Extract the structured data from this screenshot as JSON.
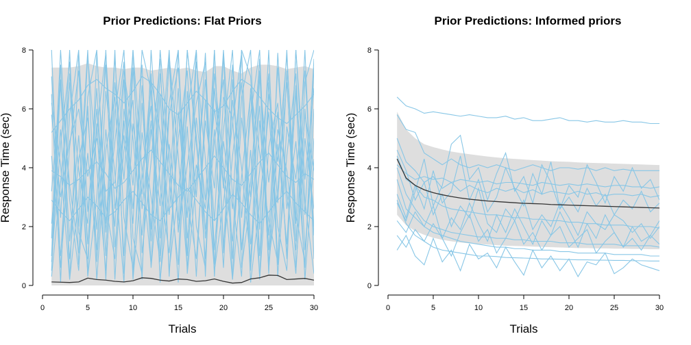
{
  "chart_data": [
    {
      "type": "line",
      "title": "Prior Predictions: Flat Priors",
      "xlabel": "Trials",
      "ylabel": "Response Time (sec)",
      "xlim": [
        0,
        30
      ],
      "ylim": [
        0,
        8
      ],
      "x_ticks": [
        0,
        5,
        10,
        15,
        20,
        25,
        30
      ],
      "y_ticks": [
        0,
        2,
        4,
        6,
        8
      ],
      "grid": false,
      "legend": "none",
      "band_color": "#dedede",
      "sample_color": "#87c6e6",
      "mean_color": "#333333",
      "x": [
        1,
        2,
        3,
        4,
        5,
        6,
        7,
        8,
        9,
        10,
        11,
        12,
        13,
        14,
        15,
        16,
        17,
        18,
        19,
        20,
        21,
        22,
        23,
        24,
        25,
        26,
        27,
        28,
        29,
        30
      ],
      "band": {
        "lower": [
          0,
          0,
          0,
          0,
          0,
          0,
          0,
          0,
          0,
          0,
          0,
          0,
          0,
          0,
          0,
          0,
          0,
          0,
          0,
          0,
          0,
          0,
          0,
          0,
          0,
          0,
          0,
          0,
          0,
          0
        ],
        "upper": [
          7.4,
          7.4,
          7.4,
          7.45,
          7.55,
          7.45,
          7.4,
          7.4,
          7.35,
          7.4,
          7.4,
          7.3,
          7.35,
          7.4,
          7.35,
          7.4,
          7.3,
          7.25,
          7.45,
          7.45,
          7.3,
          7.2,
          7.4,
          7.5,
          7.5,
          7.45,
          7.35,
          7.4,
          7.45,
          7.35
        ]
      },
      "mean": [
        0.12,
        0.11,
        0.1,
        0.12,
        0.25,
        0.2,
        0.18,
        0.14,
        0.12,
        0.16,
        0.26,
        0.24,
        0.18,
        0.15,
        0.22,
        0.2,
        0.14,
        0.16,
        0.22,
        0.14,
        0.08,
        0.1,
        0.22,
        0.26,
        0.35,
        0.34,
        0.2,
        0.22,
        0.24,
        0.18
      ],
      "samples": [
        [
          6.2,
          4.1,
          0.2,
          7.9,
          2.5,
          6.0,
          1.8,
          8.0,
          0.4,
          5.5,
          3.1,
          7.2,
          0.1,
          4.8,
          2.2,
          8.0,
          5.1,
          0.9,
          6.7,
          3.3,
          7.5,
          1.2,
          4.6,
          0.3,
          6.9,
          2.8,
          8.0,
          1.5,
          5.8,
          3.9
        ],
        [
          0.5,
          7.0,
          3.4,
          1.1,
          6.4,
          8.0,
          2.1,
          4.9,
          7.6,
          0.2,
          3.8,
          6.1,
          1.6,
          7.8,
          4.4,
          0.6,
          5.7,
          2.9,
          8.0,
          1.3,
          6.3,
          4.0,
          0.8,
          7.1,
          3.5,
          5.9,
          1.0,
          6.8,
          2.4,
          7.7
        ],
        [
          5.2,
          5.6,
          6.0,
          6.3,
          6.8,
          7.0,
          6.7,
          6.5,
          6.2,
          6.6,
          7.1,
          6.9,
          6.5,
          6.0,
          5.8,
          6.2,
          6.6,
          6.3,
          5.9,
          6.1,
          6.6,
          7.0,
          6.8,
          6.4,
          6.0,
          5.7,
          5.5,
          5.8,
          6.1,
          6.5
        ],
        [
          3.9,
          3.7,
          3.4,
          3.6,
          3.9,
          4.2,
          3.8,
          3.3,
          3.5,
          3.9,
          4.3,
          4.6,
          4.2,
          3.8,
          3.4,
          3.2,
          3.6,
          4.0,
          4.4,
          4.0,
          3.6,
          3.4,
          3.8,
          4.2,
          4.5,
          4.1,
          3.7,
          3.5,
          3.8,
          3.6
        ],
        [
          2.9,
          2.5,
          2.2,
          2.6,
          3.0,
          2.7,
          2.3,
          2.5,
          2.9,
          3.2,
          2.8,
          2.4,
          2.2,
          2.6,
          3.0,
          3.3,
          2.9,
          2.5,
          2.2,
          2.6,
          3.1,
          2.8,
          2.4,
          2.1,
          2.5,
          2.9,
          3.2,
          2.8,
          2.5,
          2.2
        ],
        [
          1.0,
          7.5,
          0.2,
          3.0,
          8.0,
          0.8,
          5.3,
          2.0,
          7.0,
          0.3,
          6.2,
          1.9,
          8.0,
          4.4,
          0.1,
          6.6,
          3.0,
          7.9,
          0.7,
          4.9,
          2.6,
          8.0,
          0.5,
          5.6,
          1.7,
          7.4,
          3.2,
          0.4,
          6.0,
          2.0
        ],
        [
          8.0,
          0.6,
          4.7,
          7.3,
          1.4,
          5.5,
          0.2,
          6.9,
          3.6,
          8.0,
          1.1,
          4.2,
          7.7,
          0.3,
          5.9,
          2.3,
          8.0,
          1.6,
          4.9,
          7.0,
          0.2,
          3.7,
          6.5,
          1.9,
          8.0,
          0.7,
          4.4,
          7.2,
          1.2,
          5.0
        ],
        [
          3.2,
          6.8,
          1.5,
          5.1,
          0.4,
          7.9,
          2.7,
          0.9,
          6.0,
          3.4,
          7.5,
          0.6,
          4.1,
          8.0,
          1.8,
          5.4,
          0.3,
          6.3,
          2.2,
          7.8,
          0.9,
          5.7,
          3.0,
          7.3,
          0.5,
          4.8,
          1.4,
          6.6,
          0.2,
          4.3
        ],
        [
          7.1,
          2.3,
          8.0,
          0.7,
          4.5,
          1.2,
          6.6,
          3.8,
          0.1,
          7.4,
          2.6,
          5.6,
          1.0,
          6.2,
          8.0,
          0.4,
          3.6,
          7.0,
          1.2,
          5.3,
          8.0,
          0.6,
          2.9,
          6.1,
          0.8,
          3.3,
          6.9,
          2.1,
          8.0,
          0.9
        ],
        [
          0.3,
          3.5,
          6.9,
          2.0,
          7.8,
          4.0,
          0.5,
          5.9,
          8.0,
          1.6,
          0.4,
          7.0,
          5.2,
          2.4,
          6.7,
          1.0,
          7.6,
          4.3,
          0.5,
          2.8,
          5.5,
          7.9,
          1.4,
          3.9,
          7.2,
          0.3,
          5.4,
          3.6,
          7.3,
          1.7
        ],
        [
          4.4,
          1.0,
          5.8,
          8.0,
          0.3,
          3.0,
          7.5,
          1.3,
          4.6,
          6.3,
          0.2,
          8.0,
          3.4,
          1.1,
          5.0,
          7.3,
          2.0,
          0.6,
          7.2,
          4.0,
          1.5,
          6.4,
          8.0,
          0.2,
          4.7,
          6.2,
          0.9,
          8.0,
          3.6,
          6.7
        ],
        [
          2.1,
          5.3,
          0.9,
          4.3,
          5.7,
          1.9,
          8.0,
          0.2,
          5.6,
          2.6,
          6.8,
          1.5,
          7.2,
          3.6,
          0.7,
          8.0,
          4.8,
          1.9,
          5.3,
          0.6,
          7.0,
          2.3,
          5.8,
          8.0,
          0.4,
          7.9,
          2.6,
          4.9,
          0.6,
          7.4
        ],
        [
          6.5,
          0.1,
          7.2,
          3.9,
          2.1,
          6.7,
          1.0,
          7.8,
          2.3,
          0.6,
          5.2,
          3.0,
          0.8,
          5.8,
          7.4,
          2.9,
          0.9,
          5.6,
          3.3,
          8.0,
          3.0,
          0.3,
          6.7,
          4.5,
          2.2,
          0.8,
          7.3,
          0.6,
          5.0,
          2.6
        ],
        [
          1.6,
          8.0,
          2.9,
          0.5,
          6.1,
          0.2,
          4.6,
          6.4,
          1.0,
          8.0,
          3.9,
          0.7,
          6.5,
          0.5,
          3.2,
          5.9,
          8.0,
          0.3,
          8.0,
          1.1,
          4.4,
          6.9,
          0.1,
          2.8,
          5.9,
          2.0,
          0.5,
          8.0,
          2.9,
          0.4
        ],
        [
          5.8,
          3.0,
          4.9,
          6.0,
          3.7,
          5.0,
          3.2,
          3.5,
          7.3,
          5.0,
          1.7,
          5.3,
          2.7,
          7.6,
          1.9,
          4.1,
          6.2,
          7.6,
          0.3,
          6.4,
          5.7,
          1.3,
          3.5,
          7.7,
          1.2,
          5.3,
          3.9,
          1.2,
          6.9,
          8.0
        ],
        [
          0.8,
          4.8,
          7.6,
          1.8,
          0.9,
          5.3,
          7.9,
          2.6,
          5.1,
          2.1,
          8.0,
          6.6,
          0.2,
          3.1,
          8.0,
          1.6,
          4.1,
          2.6,
          6.0,
          3.6,
          0.2,
          8.0,
          7.1,
          1.0,
          6.5,
          4.2,
          7.8,
          2.4,
          0.8,
          6.0
        ]
      ]
    },
    {
      "type": "line",
      "title": "Prior Predictions: Informed priors",
      "xlabel": "Trials",
      "ylabel": "Response Time (sec)",
      "xlim": [
        0,
        30
      ],
      "ylim": [
        0,
        8
      ],
      "x_ticks": [
        0,
        5,
        10,
        15,
        20,
        25,
        30
      ],
      "y_ticks": [
        0,
        2,
        4,
        6,
        8
      ],
      "grid": false,
      "legend": "none",
      "band_color": "#dedede",
      "sample_color": "#87c6e6",
      "mean_color": "#333333",
      "x": [
        1,
        2,
        3,
        4,
        5,
        6,
        7,
        8,
        9,
        10,
        11,
        12,
        13,
        14,
        15,
        16,
        17,
        18,
        19,
        20,
        21,
        22,
        23,
        24,
        25,
        26,
        27,
        28,
        29,
        30
      ],
      "band": {
        "lower": [
          2.4,
          2.05,
          1.85,
          1.72,
          1.62,
          1.55,
          1.5,
          1.46,
          1.43,
          1.41,
          1.39,
          1.37,
          1.35,
          1.34,
          1.33,
          1.32,
          1.31,
          1.3,
          1.29,
          1.28,
          1.27,
          1.27,
          1.26,
          1.26,
          1.25,
          1.25,
          1.24,
          1.24,
          1.23,
          1.23
        ],
        "upper": [
          5.9,
          5.3,
          5.0,
          4.8,
          4.7,
          4.62,
          4.55,
          4.5,
          4.46,
          4.42,
          4.38,
          4.35,
          4.32,
          4.3,
          4.28,
          4.26,
          4.24,
          4.22,
          4.21,
          4.2,
          4.18,
          4.17,
          4.16,
          4.15,
          4.14,
          4.13,
          4.12,
          4.11,
          4.1,
          4.09
        ]
      },
      "mean": [
        4.3,
        3.65,
        3.4,
        3.25,
        3.15,
        3.08,
        3.02,
        2.97,
        2.93,
        2.9,
        2.87,
        2.85,
        2.83,
        2.81,
        2.79,
        2.78,
        2.77,
        2.75,
        2.74,
        2.73,
        2.72,
        2.71,
        2.7,
        2.69,
        2.68,
        2.67,
        2.66,
        2.65,
        2.64,
        2.63
      ],
      "samples": [
        [
          6.4,
          6.1,
          6.0,
          5.85,
          5.9,
          5.85,
          5.8,
          5.75,
          5.8,
          5.75,
          5.7,
          5.7,
          5.75,
          5.65,
          5.7,
          5.6,
          5.6,
          5.65,
          5.7,
          5.6,
          5.6,
          5.55,
          5.6,
          5.55,
          5.55,
          5.6,
          5.55,
          5.55,
          5.5,
          5.5
        ],
        [
          5.8,
          5.3,
          5.2,
          4.5,
          4.3,
          4.1,
          4.3,
          4.1,
          4.0,
          4.1,
          4.0,
          4.1,
          4.0,
          3.9,
          4.0,
          4.1,
          4.0,
          3.9,
          4.0,
          4.0,
          3.95,
          4.0,
          3.9,
          4.0,
          3.9,
          3.95,
          3.9,
          3.9,
          3.9,
          3.9
        ],
        [
          4.1,
          3.8,
          3.6,
          3.7,
          3.6,
          3.65,
          3.5,
          3.6,
          3.55,
          3.5,
          3.55,
          3.45,
          3.5,
          3.5,
          3.45,
          3.4,
          3.5,
          3.45,
          3.4,
          3.45,
          3.4,
          3.45,
          3.4,
          3.35,
          3.4,
          3.4,
          3.35,
          3.35,
          3.3,
          3.35
        ],
        [
          5.0,
          4.2,
          3.9,
          3.5,
          3.7,
          3.3,
          3.5,
          3.2,
          3.4,
          3.25,
          3.15,
          3.3,
          3.2,
          3.3,
          3.15,
          3.25,
          3.1,
          3.2,
          3.15,
          3.1,
          3.2,
          3.1,
          3.15,
          3.05,
          3.1,
          3.1,
          3.05,
          3.1,
          3.0,
          3.05
        ],
        [
          4.4,
          3.6,
          3.4,
          3.0,
          2.9,
          2.7,
          2.6,
          2.55,
          2.5,
          2.45,
          2.4,
          2.4,
          2.35,
          2.3,
          2.3,
          2.25,
          2.25,
          2.2,
          2.2,
          2.15,
          2.15,
          2.1,
          2.1,
          2.05,
          2.05,
          2.05,
          2.0,
          2.0,
          2.0,
          1.95
        ],
        [
          4.0,
          3.1,
          2.6,
          2.2,
          2.0,
          1.9,
          1.8,
          1.75,
          1.7,
          1.65,
          1.65,
          1.6,
          1.6,
          1.55,
          1.55,
          1.5,
          1.5,
          1.5,
          1.45,
          1.45,
          1.45,
          1.4,
          1.4,
          1.4,
          1.4,
          1.35,
          1.35,
          1.35,
          1.35,
          1.3
        ],
        [
          3.6,
          2.6,
          2.3,
          2.0,
          1.8,
          1.7,
          1.6,
          1.5,
          1.45,
          1.4,
          1.35,
          1.3,
          1.3,
          1.25,
          1.25,
          1.2,
          1.2,
          1.2,
          1.15,
          1.15,
          1.1,
          1.1,
          1.1,
          1.1,
          1.05,
          1.05,
          1.05,
          1.05,
          1.0,
          1.0
        ],
        [
          2.9,
          2.1,
          1.7,
          1.5,
          1.3,
          1.2,
          1.15,
          1.1,
          1.05,
          1.0,
          1.0,
          0.98,
          0.95,
          0.94,
          0.93,
          0.92,
          0.9,
          0.9,
          0.89,
          0.88,
          0.87,
          0.87,
          0.86,
          0.86,
          0.85,
          0.85,
          0.84,
          0.84,
          0.83,
          0.83
        ],
        [
          1.2,
          1.7,
          1.0,
          0.7,
          1.6,
          0.8,
          1.2,
          0.5,
          1.4,
          0.9,
          1.1,
          0.6,
          1.3,
          0.8,
          0.35,
          1.2,
          0.6,
          1.0,
          0.5,
          0.9,
          0.3,
          0.8,
          0.7,
          1.1,
          0.4,
          0.6,
          0.9,
          0.7,
          0.6,
          0.5
        ],
        [
          1.7,
          1.3,
          1.9,
          1.5,
          2.1,
          1.6,
          1.0,
          1.8,
          2.4,
          1.5,
          1.9,
          1.1,
          1.6,
          2.2,
          1.4,
          1.8,
          1.2,
          1.7,
          2.0,
          1.3,
          1.6,
          1.9,
          1.1,
          1.5,
          1.8,
          1.3,
          1.6,
          1.2,
          1.7,
          1.4
        ],
        [
          3.1,
          2.3,
          3.4,
          2.6,
          3.9,
          2.8,
          3.2,
          4.4,
          2.9,
          3.6,
          2.5,
          3.0,
          4.0,
          3.3,
          2.7,
          3.8,
          3.1,
          4.2,
          2.6,
          3.4,
          3.0,
          4.1,
          3.5,
          2.8,
          3.7,
          3.2,
          4.0,
          3.3,
          3.6,
          2.9
        ],
        [
          4.6,
          3.9,
          2.9,
          3.5,
          2.4,
          3.1,
          2.0,
          2.7,
          2.3,
          3.3,
          2.1,
          1.8,
          2.6,
          2.2,
          2.9,
          1.9,
          2.4,
          2.0,
          2.8,
          2.3,
          1.7,
          2.5,
          2.1,
          1.9,
          2.4,
          2.2,
          1.8,
          2.1,
          1.6,
          2.0
        ],
        [
          2.8,
          2.2,
          3.2,
          4.3,
          2.7,
          3.4,
          4.8,
          5.1,
          3.6,
          4.0,
          2.9,
          3.8,
          4.5,
          3.2,
          3.7,
          2.8,
          4.1,
          3.5,
          2.6,
          3.0,
          2.5,
          3.3,
          2.7,
          3.1,
          2.4,
          2.9,
          2.6,
          3.2,
          2.5,
          2.8
        ],
        [
          2.2,
          1.8,
          2.5,
          2.0,
          2.7,
          1.6,
          2.3,
          1.9,
          2.8,
          2.1,
          1.5,
          2.4,
          1.8,
          2.6,
          2.0,
          1.4,
          2.2,
          1.7,
          2.5,
          1.9,
          1.3,
          2.1,
          1.6,
          2.4,
          1.8,
          1.3,
          2.0,
          1.5,
          1.7,
          2.2
        ]
      ]
    }
  ]
}
